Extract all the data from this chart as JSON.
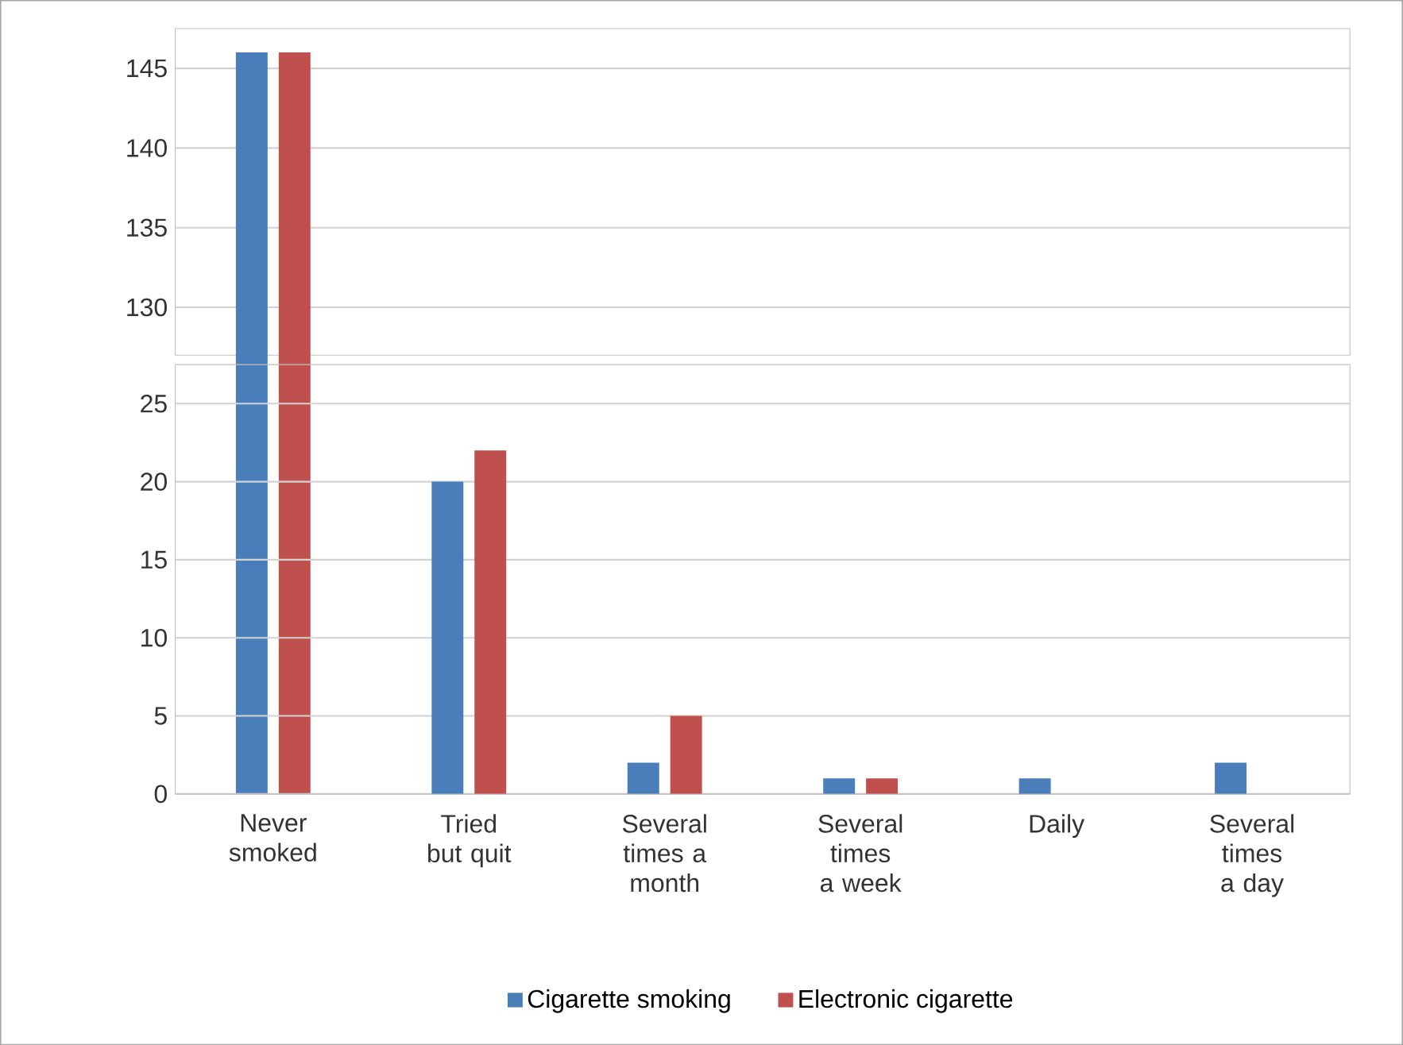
{
  "chart_data": [
    {
      "type": "bar",
      "categories": [
        null,
        null,
        null,
        null,
        null,
        null
      ],
      "series": [
        {
          "color": "#4a7ebb",
          "values": [
            146,
            null,
            null,
            null,
            null,
            null
          ]
        },
        {
          "color": "#c0504d",
          "values": [
            146,
            null,
            null,
            null,
            null,
            null
          ]
        }
      ],
      "ylim": [
        127,
        147.5
      ],
      "yticks": [
        130,
        135,
        140,
        145
      ],
      "grid": "y",
      "tick_labels": "y"
    },
    {
      "type": "bar",
      "categories": [
        "Never smoked",
        "Tried but quit",
        "Several times a month",
        "Several times a week",
        "Daily",
        "Several times a day"
      ],
      "series": [
        {
          "name": "Cigarette smoking",
          "color": "#4a7ebb",
          "values": [
            null,
            20,
            2,
            1,
            1,
            2
          ]
        },
        {
          "name": "Electronic cigarette",
          "color": "#c0504d",
          "values": [
            null,
            22,
            5,
            1,
            0,
            0
          ]
        }
      ],
      "ylim": [
        0,
        27.5
      ],
      "yticks": [
        0,
        5,
        10,
        15,
        20,
        25
      ],
      "grid": "y",
      "legend": "bottom"
    }
  ]
}
